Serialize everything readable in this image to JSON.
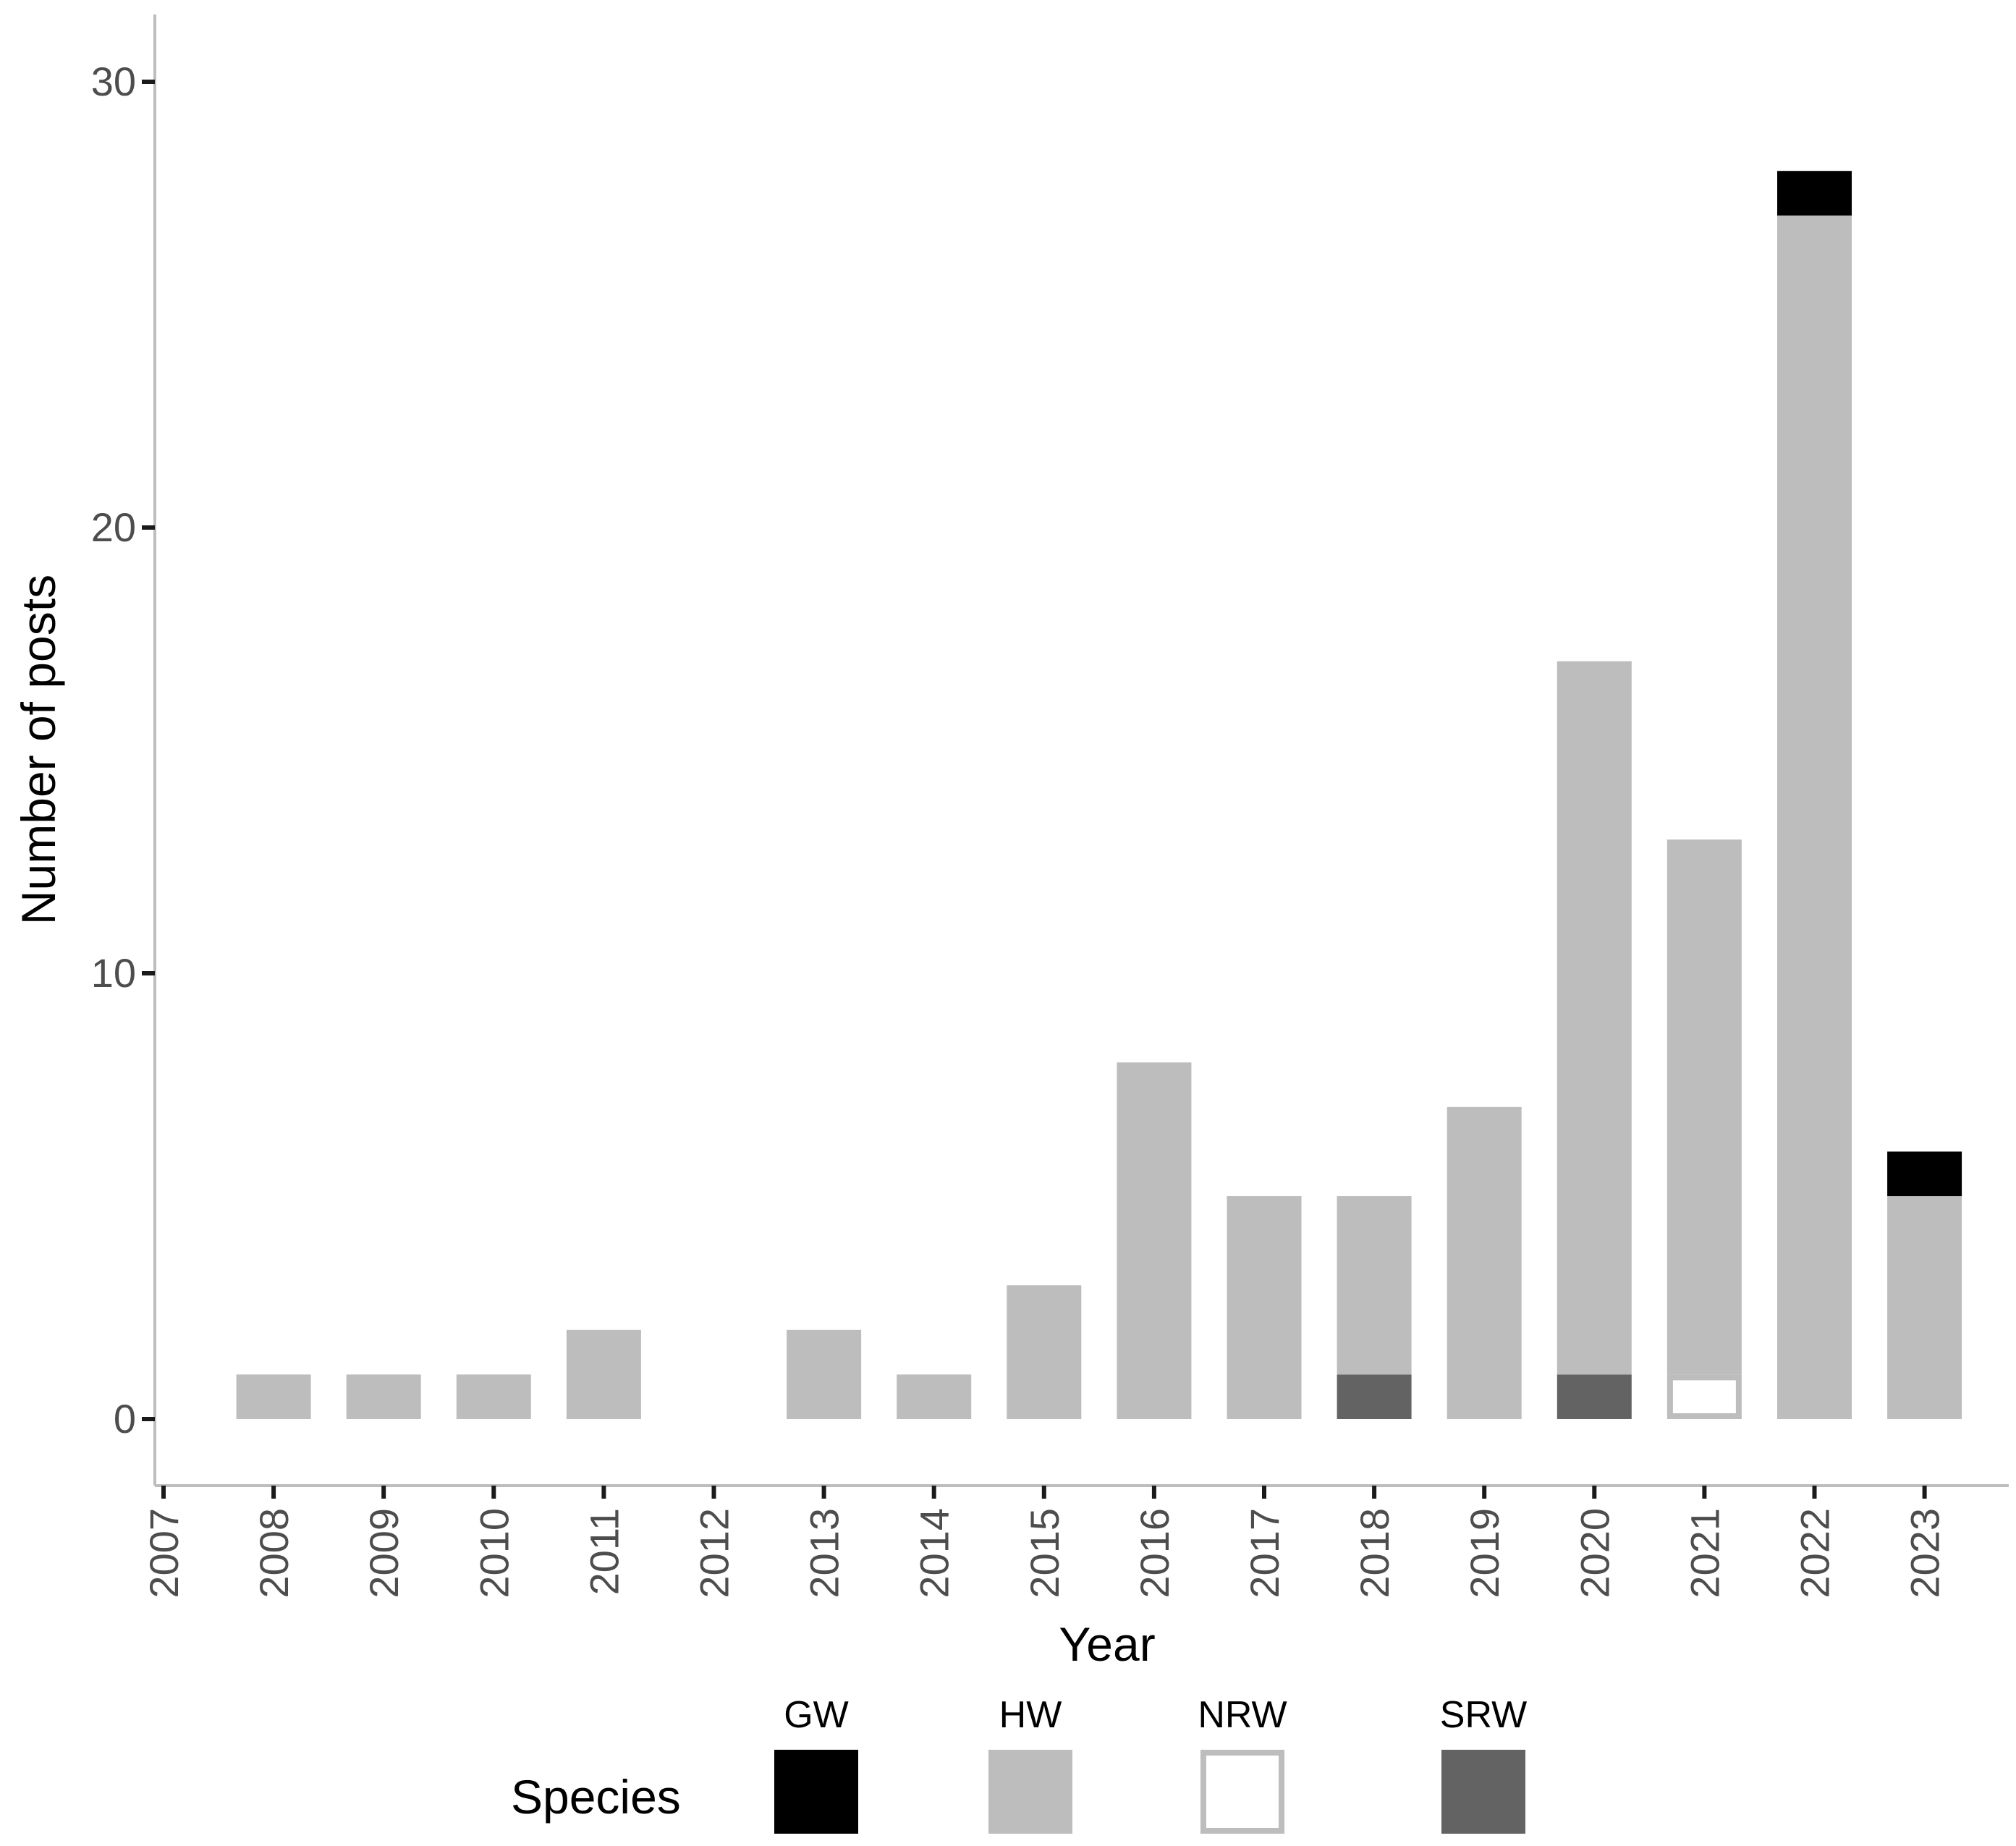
{
  "chart_data": {
    "type": "bar",
    "stacked": true,
    "categories": [
      "2007",
      "2008",
      "2009",
      "2010",
      "2011",
      "2012",
      "2013",
      "2014",
      "2015",
      "2016",
      "2017",
      "2018",
      "2019",
      "2020",
      "2021",
      "2022",
      "2023"
    ],
    "series": [
      {
        "name": "SRW",
        "color": "#636363",
        "values": [
          0,
          0,
          0,
          0,
          0,
          0,
          0,
          0,
          0,
          0,
          0,
          1,
          0,
          1,
          0,
          0,
          0
        ]
      },
      {
        "name": "NRW",
        "color": "#ffffff",
        "outline": "#bdbdbd",
        "values": [
          0,
          0,
          0,
          0,
          0,
          0,
          0,
          0,
          0,
          0,
          0,
          0,
          0,
          0,
          1,
          0,
          0
        ]
      },
      {
        "name": "HW",
        "color": "#bdbdbd",
        "values": [
          0,
          1,
          1,
          1,
          2,
          0,
          2,
          1,
          3,
          8,
          5,
          4,
          7,
          16,
          12,
          27,
          5
        ]
      },
      {
        "name": "GW",
        "color": "#000000",
        "values": [
          0,
          0,
          0,
          0,
          0,
          0,
          0,
          0,
          0,
          0,
          0,
          0,
          0,
          0,
          0,
          1,
          1
        ]
      }
    ],
    "xlabel": "Year",
    "ylabel": "Number of posts",
    "ylim": [
      -1.5,
      31.5
    ],
    "yticks": [
      0,
      10,
      20,
      30
    ],
    "grid": false,
    "legend": {
      "title": "Species",
      "position": "bottom",
      "keys": [
        {
          "label": "GW",
          "color": "#000000"
        },
        {
          "label": "HW",
          "color": "#bdbdbd"
        },
        {
          "label": "NRW",
          "color": "#ffffff",
          "outline": "#bdbdbd"
        },
        {
          "label": "SRW",
          "color": "#636363"
        }
      ]
    }
  }
}
